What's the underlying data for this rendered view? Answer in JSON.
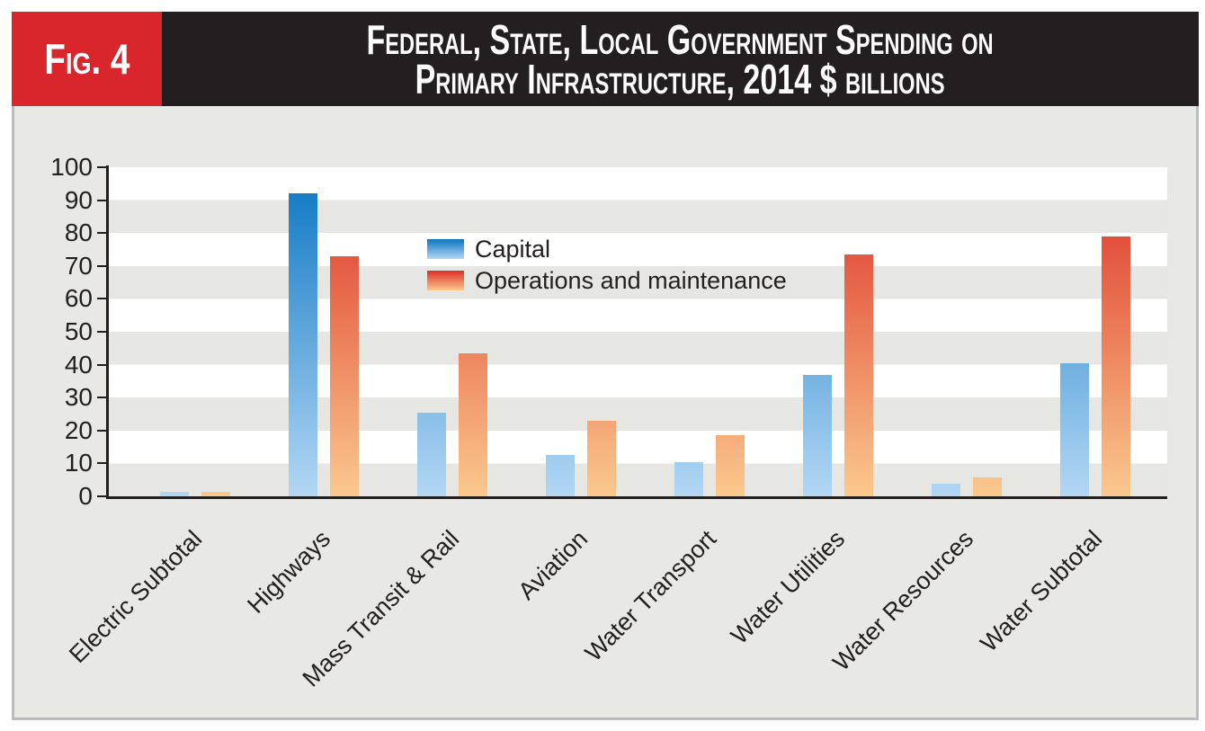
{
  "figure": {
    "badge": "Fig. 4",
    "title_line1": "Federal, State, Local Government Spending on",
    "title_line2": "Primary Infrastructure, 2014 $ billions"
  },
  "legend": {
    "capital_label": "Capital",
    "om_label": "Operations and maintenance"
  },
  "chart_data": {
    "type": "bar",
    "title": "Federal, State, Local Government Spending on Primary Infrastructure, 2014 $ billions",
    "xlabel": "",
    "ylabel": "",
    "units": "2014 $ billions",
    "ylim": [
      0,
      100
    ],
    "yticks": [
      0,
      10,
      20,
      30,
      40,
      50,
      60,
      70,
      80,
      90,
      100
    ],
    "grid": "alternating horizontal bands",
    "legend_position": "upper middle-left inside plot",
    "categories": [
      "Electric Subtotal",
      "Highways",
      "Mass Transit & Rail",
      "Aviation",
      "Water Transport",
      "Water Utilities",
      "Water Resources",
      "Water Subtotal"
    ],
    "series": [
      {
        "name": "Capital",
        "values": [
          1.3,
          92,
          25.5,
          12.5,
          10.5,
          37,
          3.7,
          40.5
        ]
      },
      {
        "name": "Operations and maintenance",
        "values": [
          1.3,
          73,
          43.5,
          23,
          18.5,
          73.5,
          5.8,
          79
        ]
      }
    ],
    "colors": {
      "capital_gradient_top": "#0a75c2",
      "capital_gradient_bottom": "#b3d7f4",
      "om_gradient_top": "#dc2f26",
      "om_gradient_bottom": "#fbc98d",
      "badge_red": "#d8262c",
      "header_black": "#231f20",
      "body_background": "#e8e8e5",
      "band_gray": "#e6e6e2",
      "border_gray": "#b9bcc0",
      "axis": "#231f20",
      "text": "#231f20"
    }
  }
}
